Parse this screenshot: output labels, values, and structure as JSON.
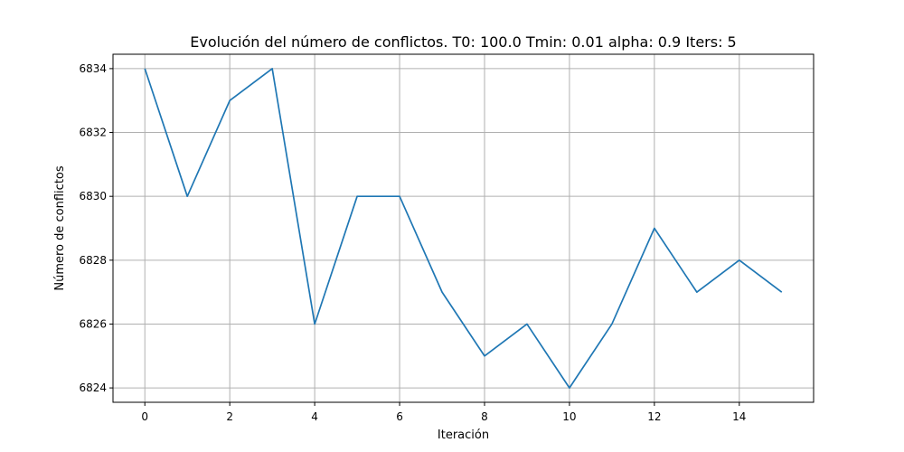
{
  "chart_data": {
    "type": "line",
    "title": "Evolución del número de conflictos. T0: 100.0 Tmin: 0.01 alpha: 0.9 Iters: 5",
    "xlabel": "Iteración",
    "ylabel": "Número de conflictos",
    "xlim": [
      -0.75,
      15.75
    ],
    "ylim": [
      6823.55,
      6834.45
    ],
    "xticks": [
      0,
      2,
      4,
      6,
      8,
      10,
      12,
      14
    ],
    "xtick_labels": [
      "0",
      "2",
      "4",
      "6",
      "8",
      "10",
      "12",
      "14"
    ],
    "yticks": [
      6824,
      6826,
      6828,
      6830,
      6832,
      6834
    ],
    "ytick_labels": [
      "6824",
      "6826",
      "6828",
      "6830",
      "6832",
      "6834"
    ],
    "grid": true,
    "color": "#1f77b4",
    "x": [
      0,
      1,
      2,
      3,
      4,
      5,
      6,
      7,
      8,
      9,
      10,
      11,
      12,
      13,
      14,
      15
    ],
    "y": [
      6834,
      6830,
      6833,
      6834,
      6826,
      6830,
      6830,
      6827,
      6825,
      6826,
      6824,
      6826,
      6829,
      6827,
      6828,
      6827
    ]
  }
}
